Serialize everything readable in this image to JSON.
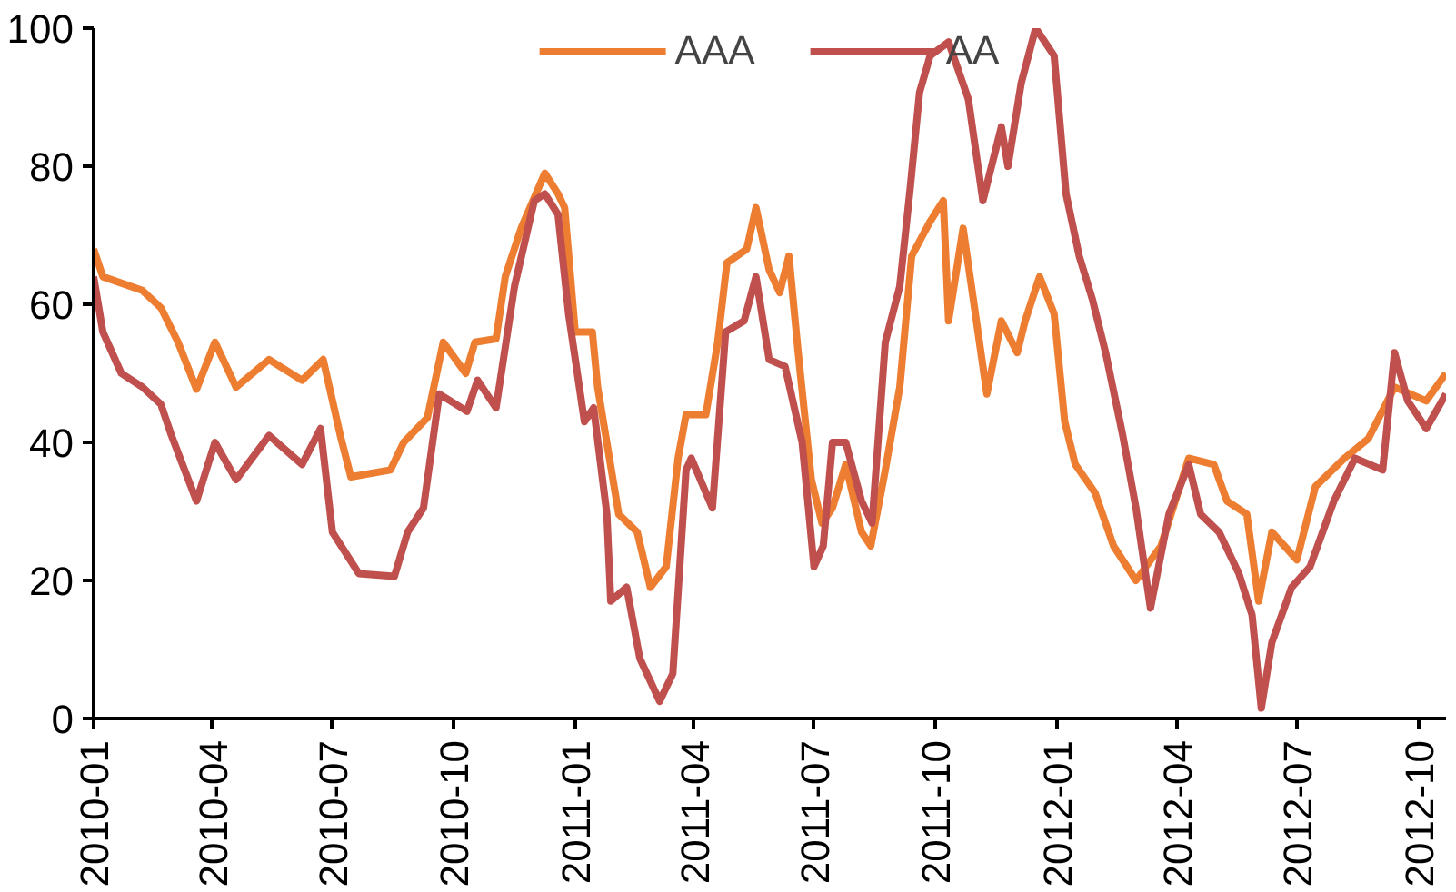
{
  "chart_data": {
    "type": "line",
    "legend": "top",
    "grid": false,
    "line_style": "solid",
    "xlim": [
      "2010-01-01",
      "2012-10-22"
    ],
    "xticks": [
      "2010-01",
      "2010-04",
      "2010-07",
      "2010-10",
      "2011-01",
      "2011-04",
      "2011-07",
      "2011-10",
      "2012-01",
      "2012-04",
      "2012-07",
      "2012-10"
    ],
    "ylim": [
      0,
      100
    ],
    "yticks": [
      0,
      20,
      40,
      60,
      80,
      100
    ],
    "series": [
      {
        "name": "AAA",
        "color": "#ed7d31",
        "x": [
          "2010-01-01",
          "2010-01-08",
          "2010-02-07",
          "2010-02-21",
          "2010-03-06",
          "2010-03-20",
          "2010-04-03",
          "2010-04-19",
          "2010-05-14",
          "2010-06-08",
          "2010-06-24",
          "2010-07-07",
          "2010-07-15",
          "2010-08-14",
          "2010-08-24",
          "2010-09-11",
          "2010-09-23",
          "2010-10-10",
          "2010-10-17",
          "2010-11-02",
          "2010-11-09",
          "2010-11-21",
          "2010-12-09",
          "2010-12-19",
          "2010-12-24",
          "2011-01-01",
          "2011-01-14",
          "2011-01-18",
          "2011-02-03",
          "2011-02-17",
          "2011-02-27",
          "2011-03-11",
          "2011-03-20",
          "2011-03-26",
          "2011-04-10",
          "2011-04-19",
          "2011-04-26",
          "2011-05-11",
          "2011-05-18",
          "2011-05-28",
          "2011-06-05",
          "2011-06-12",
          "2011-06-19",
          "2011-06-29",
          "2011-07-07",
          "2011-07-15",
          "2011-07-25",
          "2011-08-06",
          "2011-08-13",
          "2011-08-24",
          "2011-09-04",
          "2011-09-13",
          "2011-09-27",
          "2011-10-07",
          "2011-10-11",
          "2011-10-22",
          "2011-10-29",
          "2011-11-09",
          "2011-11-20",
          "2011-12-02",
          "2011-12-08",
          "2011-12-19",
          "2011-12-30",
          "2012-01-07",
          "2012-01-15",
          "2012-01-30",
          "2012-02-13",
          "2012-03-01",
          "2012-03-20",
          "2012-04-10",
          "2012-04-29",
          "2012-05-09",
          "2012-05-24",
          "2012-06-02",
          "2012-06-12",
          "2012-07-01",
          "2012-07-15",
          "2012-08-06",
          "2012-08-24",
          "2012-09-13",
          "2012-10-07",
          "2012-10-22"
        ],
        "values": [
          68,
          64,
          62,
          59.5,
          54.5,
          47.7,
          54.5,
          48,
          52,
          49,
          52,
          41,
          35,
          36,
          40,
          43.6,
          54.5,
          50,
          54.5,
          55,
          64,
          71,
          79,
          76,
          74,
          56,
          56,
          48,
          29.6,
          27,
          19,
          22,
          37.7,
          44,
          44,
          54.5,
          66,
          68,
          74,
          65,
          61.7,
          67,
          53,
          34.6,
          28.3,
          30.5,
          36.8,
          27,
          25,
          36,
          48,
          67,
          72,
          75,
          57.6,
          71,
          61.7,
          47,
          57.6,
          53,
          57.6,
          64,
          58.6,
          43,
          36.8,
          32.7,
          25,
          20,
          25,
          37.7,
          36.8,
          31.5,
          29.6,
          17,
          27,
          23,
          33.6,
          37.7,
          40.5,
          48,
          46,
          50
        ]
      },
      {
        "name": "AA",
        "color": "#c0504d",
        "x": [
          "2010-01-01",
          "2010-01-08",
          "2010-01-22",
          "2010-02-07",
          "2010-02-21",
          "2010-03-01",
          "2010-03-20",
          "2010-04-03",
          "2010-04-19",
          "2010-05-14",
          "2010-06-08",
          "2010-06-22",
          "2010-07-01",
          "2010-07-21",
          "2010-08-17",
          "2010-08-27",
          "2010-09-08",
          "2010-09-20",
          "2010-10-11",
          "2010-10-19",
          "2010-11-02",
          "2010-11-16",
          "2010-12-01",
          "2010-12-09",
          "2010-12-19",
          "2010-12-27",
          "2011-01-08",
          "2011-01-15",
          "2011-01-25",
          "2011-01-28",
          "2011-02-09",
          "2011-02-19",
          "2011-03-06",
          "2011-03-16",
          "2011-03-26",
          "2011-03-30",
          "2011-04-15",
          "2011-04-25",
          "2011-05-09",
          "2011-05-18",
          "2011-05-28",
          "2011-06-09",
          "2011-06-22",
          "2011-07-01",
          "2011-07-08",
          "2011-07-15",
          "2011-07-25",
          "2011-08-06",
          "2011-08-14",
          "2011-08-24",
          "2011-09-04",
          "2011-09-12",
          "2011-09-19",
          "2011-09-27",
          "2011-10-11",
          "2011-10-26",
          "2011-11-06",
          "2011-11-20",
          "2011-11-25",
          "2011-12-05",
          "2011-12-16",
          "2011-12-30",
          "2012-01-08",
          "2012-01-18",
          "2012-01-28",
          "2012-02-07",
          "2012-02-20",
          "2012-03-01",
          "2012-03-12",
          "2012-03-26",
          "2012-04-10",
          "2012-04-19",
          "2012-05-03",
          "2012-05-18",
          "2012-05-28",
          "2012-06-04",
          "2012-06-12",
          "2012-06-27",
          "2012-07-11",
          "2012-07-29",
          "2012-08-14",
          "2012-09-04",
          "2012-09-13",
          "2012-09-23",
          "2012-10-07",
          "2012-10-22"
        ],
        "values": [
          64,
          56,
          50,
          48,
          45.5,
          41,
          31.5,
          40,
          34.6,
          41,
          36.8,
          42,
          27,
          21,
          20.6,
          27,
          30.5,
          47,
          44.5,
          49,
          45,
          62.6,
          75,
          76,
          73,
          58.6,
          43,
          45,
          29.6,
          17,
          19,
          8.7,
          2.5,
          6.5,
          36,
          37.7,
          30.5,
          56,
          57.6,
          64,
          52,
          51,
          40,
          22,
          25,
          40,
          40,
          31.5,
          28.3,
          54.5,
          62.6,
          77,
          90.7,
          96,
          98,
          89.7,
          75,
          85.7,
          80,
          92,
          100,
          96,
          76,
          67,
          60.7,
          53,
          41,
          30.5,
          16,
          29.6,
          36.8,
          29.6,
          27,
          21,
          15,
          1.5,
          11,
          19,
          22,
          31.5,
          37.7,
          36,
          53,
          46,
          42,
          47
        ]
      }
    ]
  }
}
